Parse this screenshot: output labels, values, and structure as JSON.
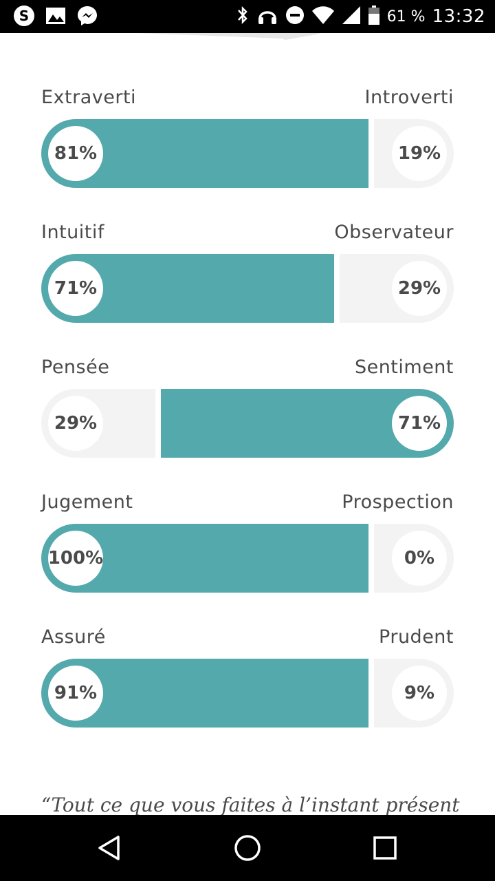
{
  "status_bar": {
    "battery": "61 %",
    "time": "13:32",
    "icons": [
      "skype-icon",
      "image-icon",
      "messenger-icon",
      "bluetooth-icon",
      "headset-icon",
      "do-not-disturb-icon",
      "wifi-icon",
      "signal-icon",
      "battery-icon"
    ]
  },
  "traits": [
    {
      "left_label": "Extraverti",
      "right_label": "Introverti",
      "left_pct": "81%",
      "right_pct": "19%",
      "left_value": 81,
      "right_value": 19,
      "dominant": "left"
    },
    {
      "left_label": "Intuitif",
      "right_label": "Observateur",
      "left_pct": "71%",
      "right_pct": "29%",
      "left_value": 71,
      "right_value": 29,
      "dominant": "left"
    },
    {
      "left_label": "Pensée",
      "right_label": "Sentiment",
      "left_pct": "29%",
      "right_pct": "71%",
      "left_value": 29,
      "right_value": 71,
      "dominant": "right"
    },
    {
      "left_label": "Jugement",
      "right_label": "Prospection",
      "left_pct": "100%",
      "right_pct": "0%",
      "left_value": 100,
      "right_value": 0,
      "dominant": "left"
    },
    {
      "left_label": "Assuré",
      "right_label": "Prudent",
      "left_pct": "91%",
      "right_pct": "9%",
      "left_value": 91,
      "right_value": 9,
      "dominant": "left"
    }
  ],
  "quote": "“Tout ce que vous faites à l’instant présent",
  "colors": {
    "accent": "#53a9ac",
    "track": "#f3f3f3",
    "text": "#4a4a4a"
  },
  "nav": {
    "back": "back-icon",
    "home": "home-icon",
    "recents": "recents-icon"
  }
}
